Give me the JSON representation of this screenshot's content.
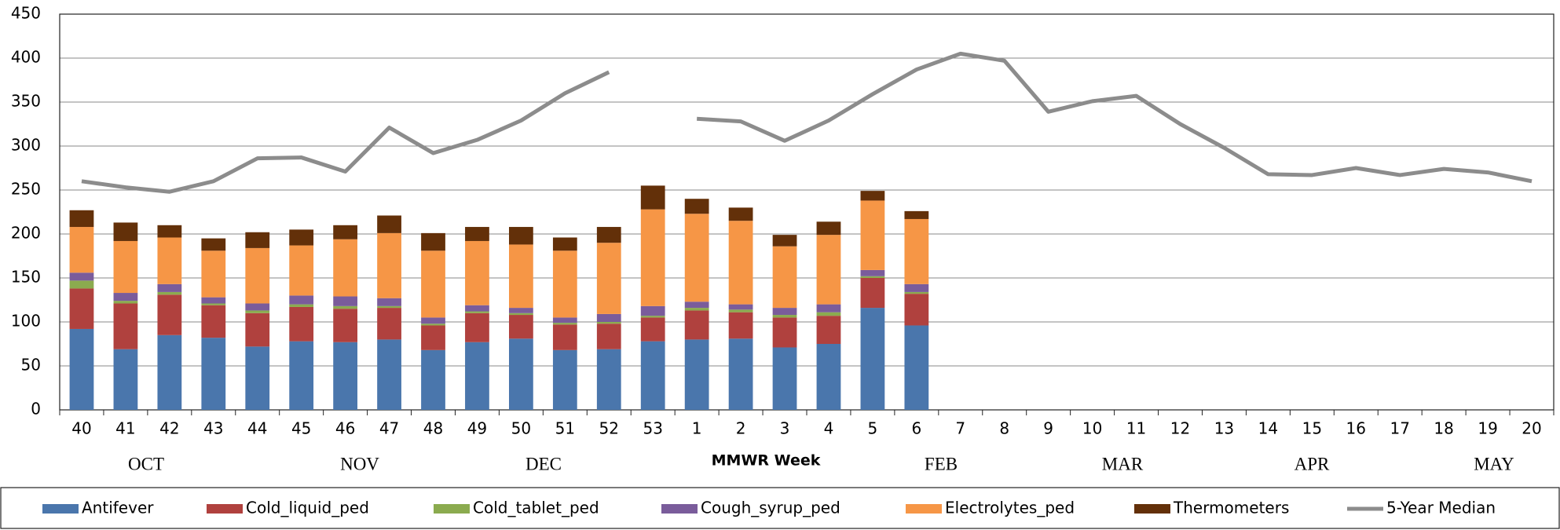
{
  "chart_data": {
    "type": "stacked-bar-line",
    "xlabel": "MMWR Week",
    "month_labels": [
      "OCT",
      "NOV",
      "DEC",
      "FEB",
      "MAR",
      "APR",
      "MAY"
    ],
    "categories": [
      "40",
      "41",
      "42",
      "43",
      "44",
      "45",
      "46",
      "47",
      "48",
      "49",
      "50",
      "51",
      "52",
      "53",
      "1",
      "2",
      "3",
      "4",
      "5",
      "6",
      "7",
      "8",
      "9",
      "10",
      "11",
      "12",
      "13",
      "14",
      "15",
      "16",
      "17",
      "18",
      "19",
      "20"
    ],
    "ylim": [
      0,
      450
    ],
    "yticks": [
      0,
      50,
      100,
      150,
      200,
      250,
      300,
      350,
      400,
      450
    ],
    "grid": true,
    "series": [
      {
        "name": "Antifever",
        "color": "#4a76ac",
        "kind": "bar",
        "values": [
          92,
          69,
          85,
          82,
          72,
          78,
          77,
          80,
          68,
          77,
          81,
          68,
          69,
          78,
          80,
          81,
          71,
          75,
          116,
          96,
          null,
          null,
          null,
          null,
          null,
          null,
          null,
          null,
          null,
          null,
          null,
          null,
          null,
          null
        ]
      },
      {
        "name": "Cold_liquid_ped",
        "color": "#b0413e",
        "kind": "bar",
        "values": [
          46,
          52,
          46,
          37,
          38,
          39,
          38,
          36,
          28,
          33,
          27,
          29,
          29,
          27,
          33,
          30,
          34,
          32,
          34,
          36,
          null,
          null,
          null,
          null,
          null,
          null,
          null,
          null,
          null,
          null,
          null,
          null,
          null,
          null
        ]
      },
      {
        "name": "Cold_tablet_ped",
        "color": "#8bab4f",
        "kind": "bar",
        "values": [
          9,
          3,
          3,
          2,
          3,
          3,
          3,
          2,
          2,
          2,
          2,
          2,
          2,
          2,
          3,
          3,
          3,
          4,
          2,
          2,
          null,
          null,
          null,
          null,
          null,
          null,
          null,
          null,
          null,
          null,
          null,
          null,
          null,
          null
        ]
      },
      {
        "name": "Cough_syrup_ped",
        "color": "#7a5c9b",
        "kind": "bar",
        "values": [
          9,
          9,
          9,
          7,
          8,
          10,
          11,
          9,
          7,
          7,
          6,
          6,
          9,
          11,
          7,
          6,
          8,
          9,
          7,
          9,
          null,
          null,
          null,
          null,
          null,
          null,
          null,
          null,
          null,
          null,
          null,
          null,
          null,
          null
        ]
      },
      {
        "name": "Electrolytes_ped",
        "color": "#f69646",
        "kind": "bar",
        "values": [
          52,
          59,
          53,
          53,
          63,
          57,
          65,
          74,
          76,
          73,
          72,
          76,
          81,
          110,
          100,
          95,
          70,
          79,
          79,
          74,
          null,
          null,
          null,
          null,
          null,
          null,
          null,
          null,
          null,
          null,
          null,
          null,
          null,
          null
        ]
      },
      {
        "name": "Thermometers",
        "color": "#633009",
        "kind": "bar",
        "values": [
          19,
          21,
          14,
          14,
          18,
          18,
          16,
          20,
          20,
          16,
          20,
          15,
          18,
          27,
          17,
          15,
          13,
          15,
          11,
          9,
          null,
          null,
          null,
          null,
          null,
          null,
          null,
          null,
          null,
          null,
          null,
          null,
          null,
          null
        ]
      },
      {
        "name": "5-Year Median",
        "color": "#8c8c8c",
        "kind": "line",
        "values": [
          260,
          253,
          248,
          260,
          286,
          287,
          271,
          321,
          292,
          307,
          329,
          360,
          384,
          null,
          331,
          328,
          306,
          329,
          359,
          387,
          405,
          397,
          339,
          351,
          357,
          325,
          298,
          268,
          267,
          275,
          267,
          274,
          270,
          260
        ]
      }
    ]
  }
}
